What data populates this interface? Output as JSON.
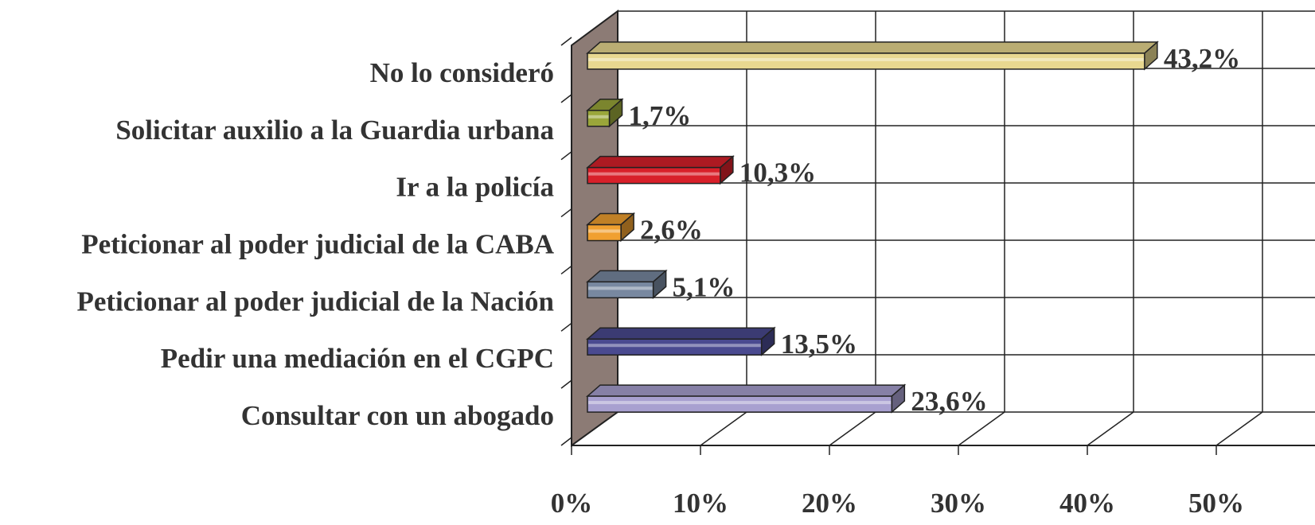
{
  "chart_data": {
    "type": "bar",
    "categories": [
      "No lo consideró",
      "Solicitar auxilio a la Guardia urbana",
      "Ir a la policía",
      "Peticionar al poder judicial de la CABA",
      "Peticionar al poder judicial de la Nación",
      "Pedir una mediación en el CGPC",
      "Consultar con un abogado"
    ],
    "values": [
      43.2,
      1.7,
      10.3,
      2.6,
      5.1,
      13.5,
      23.6
    ],
    "value_labels": [
      "43,2%",
      "1,7%",
      "10,3%",
      "2,6%",
      "5,1%",
      "13,5%",
      "23,6%"
    ],
    "colors": [
      "#e8d890",
      "#9aa63a",
      "#d8202a",
      "#f0a030",
      "#7888a0",
      "#4a4a90",
      "#a8a0d0"
    ],
    "xlim": [
      0,
      50
    ],
    "xticks": [
      {
        "value": 0,
        "label": "0%"
      },
      {
        "value": 10,
        "label": "10%"
      },
      {
        "value": 20,
        "label": "20%"
      },
      {
        "value": 30,
        "label": "30%"
      },
      {
        "value": 40,
        "label": "40%"
      },
      {
        "value": 50,
        "label": "50%"
      }
    ],
    "grid": true
  }
}
